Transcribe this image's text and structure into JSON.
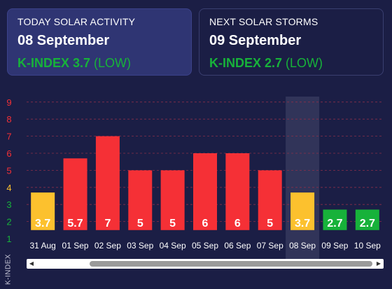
{
  "today_card": {
    "title": "TODAY SOLAR ACTIVITY",
    "date": "08 September",
    "k_label": "K-INDEX 3.7",
    "k_level": "(LOW)"
  },
  "next_card": {
    "title": "NEXT SOLAR STORMS",
    "date": "09 September",
    "k_label": "K-INDEX 2.7",
    "k_level": "(LOW)"
  },
  "axis_title": "K-INDEX",
  "colors": {
    "background": "#1b1e45",
    "low": "#17b23a",
    "moderate": "#fcc12e",
    "high": "#f53036",
    "highlight": "#3a3d63"
  },
  "icons": {
    "scroll_left": "scroll-left-arrow-icon",
    "scroll_right": "scroll-right-arrow-icon"
  },
  "chart_data": {
    "type": "bar",
    "categories": [
      "31 Aug",
      "01 Sep",
      "02 Sep",
      "03 Sep",
      "04 Sep",
      "05 Sep",
      "06 Sep",
      "07 Sep",
      "08 Sep",
      "09 Sep",
      "10 Sep"
    ],
    "values": [
      3.7,
      5.7,
      7,
      5,
      5,
      6,
      6,
      5,
      3.7,
      2.7,
      2.7
    ],
    "value_labels": [
      "3.7",
      "5.7",
      "7",
      "5",
      "5",
      "6",
      "6",
      "5",
      "3.7",
      "2.7",
      "2.7"
    ],
    "bar_colors": [
      "#fcc12e",
      "#f53036",
      "#f53036",
      "#f53036",
      "#f53036",
      "#f53036",
      "#f53036",
      "#f53036",
      "#fcc12e",
      "#17b23a",
      "#17b23a"
    ],
    "yticks": [
      "1",
      "2",
      "3",
      "4",
      "5",
      "6",
      "7",
      "8",
      "9"
    ],
    "ytick_colors": [
      "#17b23a",
      "#17b23a",
      "#17b23a",
      "#fcc12e",
      "#f53036",
      "#f53036",
      "#f53036",
      "#f53036",
      "#f53036"
    ],
    "highlighted_category": "08 Sep",
    "ylabel": "K-INDEX",
    "ylim": [
      1,
      9
    ],
    "grid": true
  }
}
